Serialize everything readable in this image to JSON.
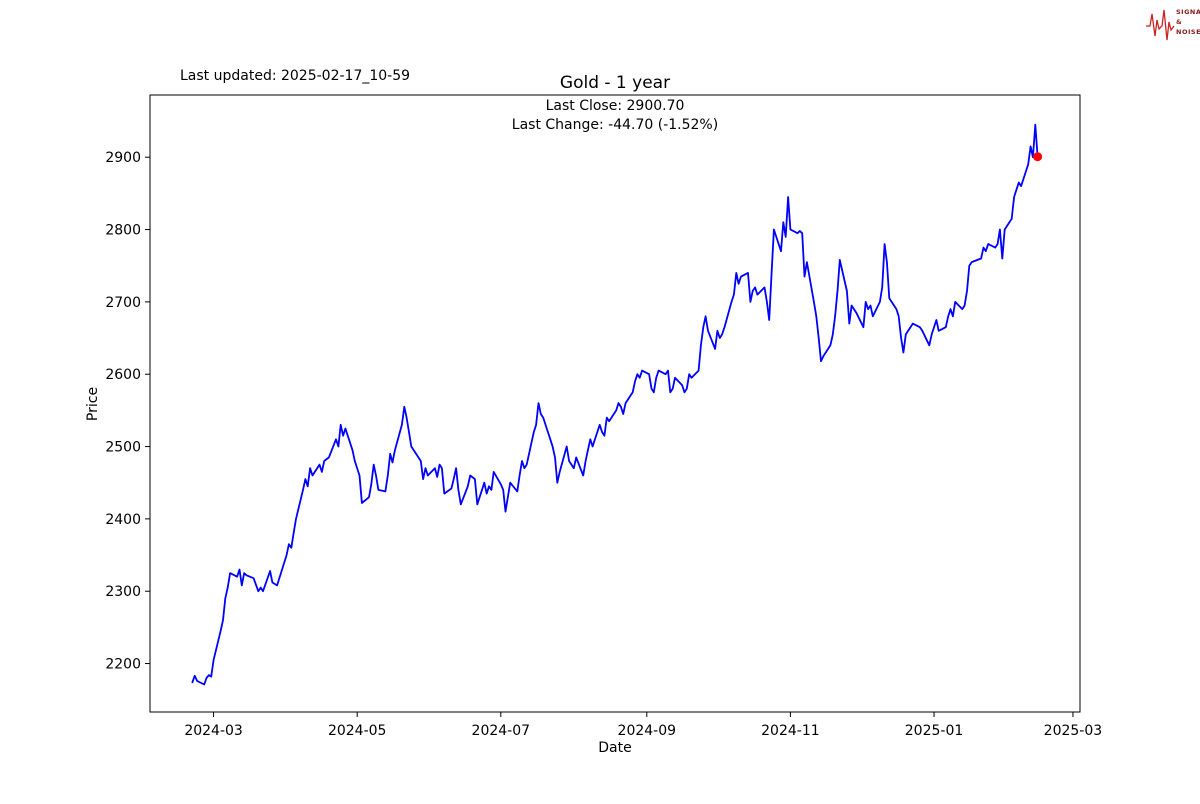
{
  "header": {
    "last_updated": "Last updated: 2025-02-17_10-59",
    "title": "Gold - 1 year",
    "annotation_line1": "Last Close: 2900.70",
    "annotation_line2": "Last Change: -44.70 (-1.52%)"
  },
  "logo": {
    "line1": "SIGNAL",
    "line2": "&",
    "line3": "NOISE"
  },
  "chart_data": {
    "type": "line",
    "title": "Gold - 1 year",
    "xlabel": "Date",
    "ylabel": "Price",
    "grid": false,
    "legend": null,
    "xlim": [
      "2024-02-03",
      "2025-03-04"
    ],
    "ylim": [
      2133,
      2986
    ],
    "yticks": [
      2200,
      2300,
      2400,
      2500,
      2600,
      2700,
      2800,
      2900
    ],
    "xticks": [
      {
        "date": "2024-03-01",
        "label": "2024-03"
      },
      {
        "date": "2024-05-01",
        "label": "2024-05"
      },
      {
        "date": "2024-07-01",
        "label": "2024-07"
      },
      {
        "date": "2024-09-01",
        "label": "2024-09"
      },
      {
        "date": "2024-11-01",
        "label": "2024-11"
      },
      {
        "date": "2025-01-01",
        "label": "2025-01"
      },
      {
        "date": "2025-03-01",
        "label": "2025-03"
      }
    ],
    "last_close": 2900.7,
    "last_change": -44.7,
    "last_change_pct": -1.52,
    "marker": {
      "date": "2025-02-14",
      "value": 2900.7,
      "color": "#ff0000"
    },
    "series": [
      {
        "name": "Gold",
        "color": "#0000ff",
        "points": [
          [
            "2024-02-21",
            2174
          ],
          [
            "2024-02-22",
            2183
          ],
          [
            "2024-02-23",
            2176
          ],
          [
            "2024-02-26",
            2171
          ],
          [
            "2024-02-27",
            2180
          ],
          [
            "2024-02-28",
            2184
          ],
          [
            "2024-02-29",
            2182
          ],
          [
            "2024-03-01",
            2205
          ],
          [
            "2024-03-04",
            2245
          ],
          [
            "2024-03-05",
            2260
          ],
          [
            "2024-03-06",
            2290
          ],
          [
            "2024-03-07",
            2305
          ],
          [
            "2024-03-08",
            2325
          ],
          [
            "2024-03-11",
            2320
          ],
          [
            "2024-03-12",
            2330
          ],
          [
            "2024-03-13",
            2308
          ],
          [
            "2024-03-14",
            2325
          ],
          [
            "2024-03-15",
            2322
          ],
          [
            "2024-03-18",
            2318
          ],
          [
            "2024-03-20",
            2300
          ],
          [
            "2024-03-21",
            2305
          ],
          [
            "2024-03-22",
            2300
          ],
          [
            "2024-03-25",
            2328
          ],
          [
            "2024-03-26",
            2312
          ],
          [
            "2024-03-28",
            2308
          ],
          [
            "2024-04-01",
            2350
          ],
          [
            "2024-04-02",
            2365
          ],
          [
            "2024-04-03",
            2360
          ],
          [
            "2024-04-04",
            2380
          ],
          [
            "2024-04-05",
            2400
          ],
          [
            "2024-04-08",
            2440
          ],
          [
            "2024-04-09",
            2455
          ],
          [
            "2024-04-10",
            2445
          ],
          [
            "2024-04-11",
            2470
          ],
          [
            "2024-04-12",
            2460
          ],
          [
            "2024-04-15",
            2475
          ],
          [
            "2024-04-16",
            2465
          ],
          [
            "2024-04-17",
            2480
          ],
          [
            "2024-04-19",
            2485
          ],
          [
            "2024-04-22",
            2510
          ],
          [
            "2024-04-23",
            2500
          ],
          [
            "2024-04-24",
            2530
          ],
          [
            "2024-04-25",
            2515
          ],
          [
            "2024-04-26",
            2525
          ],
          [
            "2024-04-29",
            2495
          ],
          [
            "2024-04-30",
            2480
          ],
          [
            "2024-05-02",
            2460
          ],
          [
            "2024-05-03",
            2422
          ],
          [
            "2024-05-06",
            2430
          ],
          [
            "2024-05-07",
            2448
          ],
          [
            "2024-05-08",
            2475
          ],
          [
            "2024-05-09",
            2460
          ],
          [
            "2024-05-10",
            2440
          ],
          [
            "2024-05-13",
            2438
          ],
          [
            "2024-05-14",
            2460
          ],
          [
            "2024-05-15",
            2490
          ],
          [
            "2024-05-16",
            2478
          ],
          [
            "2024-05-17",
            2495
          ],
          [
            "2024-05-20",
            2530
          ],
          [
            "2024-05-21",
            2555
          ],
          [
            "2024-05-22",
            2540
          ],
          [
            "2024-05-23",
            2520
          ],
          [
            "2024-05-24",
            2500
          ],
          [
            "2024-05-28",
            2480
          ],
          [
            "2024-05-29",
            2455
          ],
          [
            "2024-05-30",
            2470
          ],
          [
            "2024-05-31",
            2460
          ],
          [
            "2024-06-03",
            2470
          ],
          [
            "2024-06-04",
            2458
          ],
          [
            "2024-06-05",
            2475
          ],
          [
            "2024-06-06",
            2470
          ],
          [
            "2024-06-07",
            2435
          ],
          [
            "2024-06-10",
            2442
          ],
          [
            "2024-06-11",
            2455
          ],
          [
            "2024-06-12",
            2470
          ],
          [
            "2024-06-13",
            2440
          ],
          [
            "2024-06-14",
            2420
          ],
          [
            "2024-06-17",
            2445
          ],
          [
            "2024-06-18",
            2460
          ],
          [
            "2024-06-20",
            2455
          ],
          [
            "2024-06-21",
            2420
          ],
          [
            "2024-06-24",
            2450
          ],
          [
            "2024-06-25",
            2435
          ],
          [
            "2024-06-26",
            2445
          ],
          [
            "2024-06-27",
            2440
          ],
          [
            "2024-06-28",
            2465
          ],
          [
            "2024-07-01",
            2448
          ],
          [
            "2024-07-02",
            2440
          ],
          [
            "2024-07-03",
            2410
          ],
          [
            "2024-07-05",
            2450
          ],
          [
            "2024-07-08",
            2438
          ],
          [
            "2024-07-09",
            2460
          ],
          [
            "2024-07-10",
            2480
          ],
          [
            "2024-07-11",
            2470
          ],
          [
            "2024-07-12",
            2475
          ],
          [
            "2024-07-15",
            2520
          ],
          [
            "2024-07-16",
            2530
          ],
          [
            "2024-07-17",
            2560
          ],
          [
            "2024-07-18",
            2545
          ],
          [
            "2024-07-19",
            2540
          ],
          [
            "2024-07-22",
            2510
          ],
          [
            "2024-07-23",
            2500
          ],
          [
            "2024-07-24",
            2485
          ],
          [
            "2024-07-25",
            2450
          ],
          [
            "2024-07-26",
            2465
          ],
          [
            "2024-07-29",
            2500
          ],
          [
            "2024-07-30",
            2480
          ],
          [
            "2024-08-01",
            2470
          ],
          [
            "2024-08-02",
            2485
          ],
          [
            "2024-08-05",
            2460
          ],
          [
            "2024-08-06",
            2480
          ],
          [
            "2024-08-07",
            2495
          ],
          [
            "2024-08-08",
            2510
          ],
          [
            "2024-08-09",
            2500
          ],
          [
            "2024-08-12",
            2530
          ],
          [
            "2024-08-13",
            2520
          ],
          [
            "2024-08-14",
            2515
          ],
          [
            "2024-08-15",
            2540
          ],
          [
            "2024-08-16",
            2535
          ],
          [
            "2024-08-19",
            2550
          ],
          [
            "2024-08-20",
            2560
          ],
          [
            "2024-08-21",
            2555
          ],
          [
            "2024-08-22",
            2545
          ],
          [
            "2024-08-23",
            2560
          ],
          [
            "2024-08-26",
            2575
          ],
          [
            "2024-08-27",
            2590
          ],
          [
            "2024-08-28",
            2600
          ],
          [
            "2024-08-29",
            2595
          ],
          [
            "2024-08-30",
            2605
          ],
          [
            "2024-09-02",
            2600
          ],
          [
            "2024-09-03",
            2580
          ],
          [
            "2024-09-04",
            2575
          ],
          [
            "2024-09-05",
            2595
          ],
          [
            "2024-09-06",
            2605
          ],
          [
            "2024-09-09",
            2600
          ],
          [
            "2024-09-10",
            2605
          ],
          [
            "2024-09-11",
            2575
          ],
          [
            "2024-09-12",
            2580
          ],
          [
            "2024-09-13",
            2595
          ],
          [
            "2024-09-16",
            2585
          ],
          [
            "2024-09-17",
            2575
          ],
          [
            "2024-09-18",
            2580
          ],
          [
            "2024-09-19",
            2600
          ],
          [
            "2024-09-20",
            2595
          ],
          [
            "2024-09-23",
            2605
          ],
          [
            "2024-09-24",
            2640
          ],
          [
            "2024-09-25",
            2665
          ],
          [
            "2024-09-26",
            2680
          ],
          [
            "2024-09-27",
            2660
          ],
          [
            "2024-09-30",
            2635
          ],
          [
            "2024-10-01",
            2660
          ],
          [
            "2024-10-02",
            2650
          ],
          [
            "2024-10-03",
            2655
          ],
          [
            "2024-10-04",
            2665
          ],
          [
            "2024-10-07",
            2700
          ],
          [
            "2024-10-08",
            2710
          ],
          [
            "2024-10-09",
            2740
          ],
          [
            "2024-10-10",
            2725
          ],
          [
            "2024-10-11",
            2735
          ],
          [
            "2024-10-14",
            2740
          ],
          [
            "2024-10-15",
            2700
          ],
          [
            "2024-10-16",
            2715
          ],
          [
            "2024-10-17",
            2720
          ],
          [
            "2024-10-18",
            2710
          ],
          [
            "2024-10-21",
            2720
          ],
          [
            "2024-10-22",
            2700
          ],
          [
            "2024-10-23",
            2675
          ],
          [
            "2024-10-24",
            2740
          ],
          [
            "2024-10-25",
            2800
          ],
          [
            "2024-10-28",
            2770
          ],
          [
            "2024-10-29",
            2810
          ],
          [
            "2024-10-30",
            2790
          ],
          [
            "2024-10-31",
            2845
          ],
          [
            "2024-11-01",
            2800
          ],
          [
            "2024-11-04",
            2795
          ],
          [
            "2024-11-05",
            2798
          ],
          [
            "2024-11-06",
            2795
          ],
          [
            "2024-11-07",
            2735
          ],
          [
            "2024-11-08",
            2755
          ],
          [
            "2024-11-11",
            2700
          ],
          [
            "2024-11-12",
            2680
          ],
          [
            "2024-11-13",
            2650
          ],
          [
            "2024-11-14",
            2618
          ],
          [
            "2024-11-15",
            2625
          ],
          [
            "2024-11-18",
            2640
          ],
          [
            "2024-11-19",
            2655
          ],
          [
            "2024-11-20",
            2680
          ],
          [
            "2024-11-21",
            2715
          ],
          [
            "2024-11-22",
            2758
          ],
          [
            "2024-11-25",
            2715
          ],
          [
            "2024-11-26",
            2670
          ],
          [
            "2024-11-27",
            2695
          ],
          [
            "2024-11-29",
            2685
          ],
          [
            "2024-12-02",
            2665
          ],
          [
            "2024-12-03",
            2700
          ],
          [
            "2024-12-04",
            2690
          ],
          [
            "2024-12-05",
            2695
          ],
          [
            "2024-12-06",
            2680
          ],
          [
            "2024-12-09",
            2700
          ],
          [
            "2024-12-10",
            2720
          ],
          [
            "2024-12-11",
            2780
          ],
          [
            "2024-12-12",
            2755
          ],
          [
            "2024-12-13",
            2705
          ],
          [
            "2024-12-16",
            2690
          ],
          [
            "2024-12-17",
            2680
          ],
          [
            "2024-12-18",
            2650
          ],
          [
            "2024-12-19",
            2630
          ],
          [
            "2024-12-20",
            2655
          ],
          [
            "2024-12-23",
            2670
          ],
          [
            "2024-12-26",
            2665
          ],
          [
            "2024-12-27",
            2660
          ],
          [
            "2024-12-30",
            2640
          ],
          [
            "2024-12-31",
            2655
          ],
          [
            "2025-01-02",
            2675
          ],
          [
            "2025-01-03",
            2660
          ],
          [
            "2025-01-06",
            2665
          ],
          [
            "2025-01-07",
            2680
          ],
          [
            "2025-01-08",
            2690
          ],
          [
            "2025-01-09",
            2680
          ],
          [
            "2025-01-10",
            2700
          ],
          [
            "2025-01-13",
            2690
          ],
          [
            "2025-01-14",
            2695
          ],
          [
            "2025-01-15",
            2715
          ],
          [
            "2025-01-16",
            2750
          ],
          [
            "2025-01-17",
            2755
          ],
          [
            "2025-01-21",
            2760
          ],
          [
            "2025-01-22",
            2775
          ],
          [
            "2025-01-23",
            2770
          ],
          [
            "2025-01-24",
            2780
          ],
          [
            "2025-01-27",
            2775
          ],
          [
            "2025-01-28",
            2780
          ],
          [
            "2025-01-29",
            2800
          ],
          [
            "2025-01-30",
            2760
          ],
          [
            "2025-01-31",
            2800
          ],
          [
            "2025-02-03",
            2815
          ],
          [
            "2025-02-04",
            2845
          ],
          [
            "2025-02-05",
            2855
          ],
          [
            "2025-02-06",
            2865
          ],
          [
            "2025-02-07",
            2860
          ],
          [
            "2025-02-10",
            2890
          ],
          [
            "2025-02-11",
            2915
          ],
          [
            "2025-02-12",
            2900
          ],
          [
            "2025-02-13",
            2945
          ],
          [
            "2025-02-14",
            2900.7
          ]
        ]
      }
    ]
  }
}
